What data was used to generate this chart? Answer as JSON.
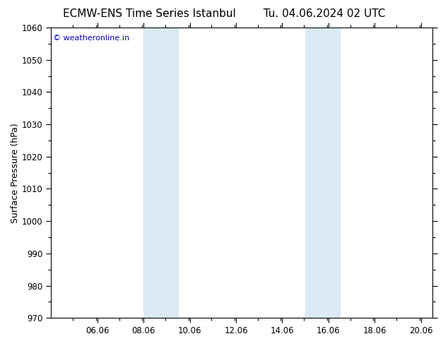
{
  "title_left": "ECMW-ENS Time Series Istanbul",
  "title_right": "Tu. 04.06.2024 02 UTC",
  "ylabel": "Surface Pressure (hPa)",
  "ylim": [
    970,
    1060
  ],
  "yticks": [
    970,
    980,
    990,
    1000,
    1010,
    1020,
    1030,
    1040,
    1050,
    1060
  ],
  "xlim": [
    4.06,
    20.56
  ],
  "xticks": [
    6.06,
    8.06,
    10.06,
    12.06,
    14.06,
    16.06,
    18.06,
    20.06
  ],
  "xticklabels": [
    "06.06",
    "08.06",
    "10.06",
    "12.06",
    "14.06",
    "16.06",
    "18.06",
    "20.06"
  ],
  "background_color": "#ffffff",
  "plot_bg_color": "#ffffff",
  "shaded_bands": [
    {
      "x_start": 8.06,
      "x_end": 9.56
    },
    {
      "x_start": 15.06,
      "x_end": 16.56
    }
  ],
  "shaded_color": "#daeaf7",
  "watermark_text": "© weatheronline.in",
  "watermark_color": "#0000cc",
  "watermark_fontsize": 8,
  "title_fontsize": 11,
  "tick_fontsize": 8.5,
  "ylabel_fontsize": 9
}
